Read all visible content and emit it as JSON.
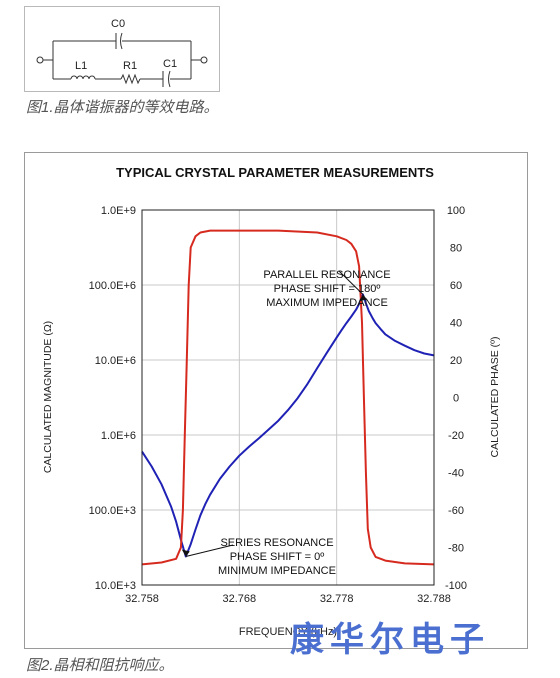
{
  "figure1": {
    "caption": "图1.晶体谐振器的等效电路。",
    "components": {
      "c0": "C0",
      "l1": "L1",
      "r1": "R1",
      "c1": "C1"
    }
  },
  "figure2": {
    "caption": "图2.晶相和阻抗响应。"
  },
  "watermark": "康华尔电子",
  "chart_data": {
    "type": "line",
    "title": "TYPICAL CRYSTAL PARAMETER MEASUREMENTS",
    "xlabel": "FREQUENCY (kHz)",
    "ylabel_left": "CALCULATED MAGNITUDE (Ω)",
    "ylabel_right": "CALCULATED PHASE (º)",
    "x_ticks": [
      "32.758",
      "32.768",
      "32.778",
      "32.788"
    ],
    "x_tick_values": [
      32.758,
      32.768,
      32.778,
      32.788
    ],
    "xlim": [
      32.758,
      32.788
    ],
    "y_left_ticks": [
      "10.0E+3",
      "100.0E+3",
      "1.0E+6",
      "10.0E+6",
      "100.0E+6",
      "1.0E+9"
    ],
    "y_left_scale": "log",
    "y_left_lim": [
      10000,
      1000000000
    ],
    "y_right_ticks": [
      "-100",
      "-80",
      "-60",
      "-40",
      "-20",
      "0",
      "20",
      "40",
      "60",
      "80",
      "100"
    ],
    "y_right_lim": [
      -100,
      100
    ],
    "grid": true,
    "annotations": [
      {
        "lines": [
          "PARALLEL RESONANCE",
          "PHASE SHIFT = 180º",
          "MAXIMUM IMPEDANCE"
        ],
        "point": {
          "x": 32.7807,
          "y": 75000000
        }
      },
      {
        "lines": [
          "SERIES RESONANCE",
          "PHASE SHIFT = 0º",
          "MINIMUM IMPEDANCE"
        ],
        "point": {
          "x": 32.7625,
          "y": 24000
        }
      }
    ],
    "series": [
      {
        "axis": "left",
        "color": "#1f22b4",
        "x": [
          32.758,
          32.759,
          32.76,
          32.761,
          32.7615,
          32.762,
          32.7625,
          32.763,
          32.7635,
          32.764,
          32.7645,
          32.765,
          32.766,
          32.767,
          32.768,
          32.769,
          32.77,
          32.771,
          32.772,
          32.773,
          32.774,
          32.775,
          32.776,
          32.777,
          32.778,
          32.7785,
          32.779,
          32.7795,
          32.78,
          32.7803,
          32.7807,
          32.781,
          32.7813,
          32.7817,
          32.782,
          32.7825,
          32.783,
          32.784,
          32.785,
          32.786,
          32.787,
          32.788
        ],
        "y": [
          600000,
          380000,
          220000,
          110000,
          70000,
          40000,
          24000,
          35000,
          55000,
          85000,
          120000,
          160000,
          260000,
          380000,
          530000,
          700000,
          900000,
          1180000,
          1550000,
          2150000,
          3100000,
          4800000,
          7800000,
          12500000,
          20000000,
          25000000,
          31000000,
          38000000,
          47000000,
          56000000,
          75000000,
          57000000,
          45000000,
          36000000,
          31000000,
          26000000,
          22000000,
          18000000,
          15500000,
          13500000,
          12200000,
          11500000
        ]
      },
      {
        "axis": "right",
        "color": "#d62a1f",
        "x": [
          32.758,
          32.76,
          32.7615,
          32.762,
          32.7622,
          32.7624,
          32.7626,
          32.7628,
          32.763,
          32.7635,
          32.764,
          32.765,
          32.768,
          32.772,
          32.776,
          32.778,
          32.779,
          32.7795,
          32.78,
          32.7803,
          32.7806,
          32.7808,
          32.781,
          32.7812,
          32.7815,
          32.782,
          32.783,
          32.785,
          32.788
        ],
        "y": [
          -89,
          -88,
          -86,
          -80,
          -60,
          -20,
          20,
          60,
          80,
          86,
          88,
          89,
          89,
          89,
          88,
          86,
          84,
          82,
          78,
          70,
          40,
          0,
          -40,
          -70,
          -80,
          -85,
          -87,
          -88.5,
          -89
        ]
      }
    ]
  }
}
